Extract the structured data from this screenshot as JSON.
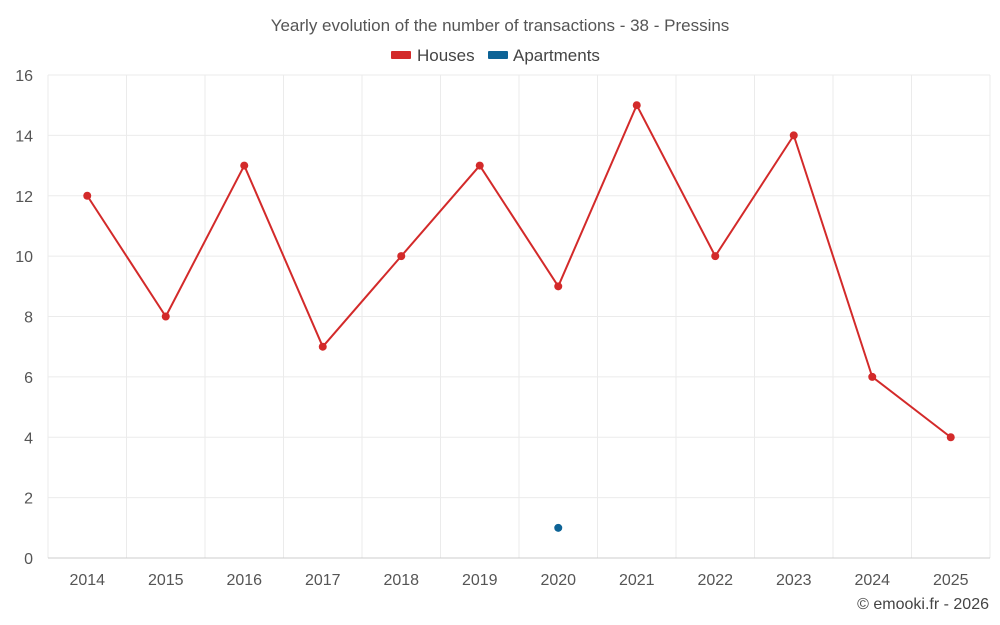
{
  "chart_data": {
    "type": "line",
    "title": "Yearly evolution of the number of transactions - 38 - Pressins",
    "categories": [
      "2014",
      "2015",
      "2016",
      "2017",
      "2018",
      "2019",
      "2020",
      "2021",
      "2022",
      "2023",
      "2024",
      "2025"
    ],
    "ylim": [
      0,
      16
    ],
    "yticks": [
      0,
      2,
      4,
      6,
      8,
      10,
      12,
      14,
      16
    ],
    "grid": true,
    "legend_position": "top-center",
    "series": [
      {
        "name": "Houses",
        "color": "#d32a2a",
        "values": [
          12,
          8,
          13,
          7,
          10,
          13,
          9,
          15,
          10,
          14,
          6,
          4
        ]
      },
      {
        "name": "Apartments",
        "color": "#0d6396",
        "values": [
          null,
          null,
          null,
          null,
          null,
          null,
          1,
          null,
          null,
          null,
          null,
          null
        ]
      }
    ],
    "credit": "© emooki.fr - 2026"
  }
}
